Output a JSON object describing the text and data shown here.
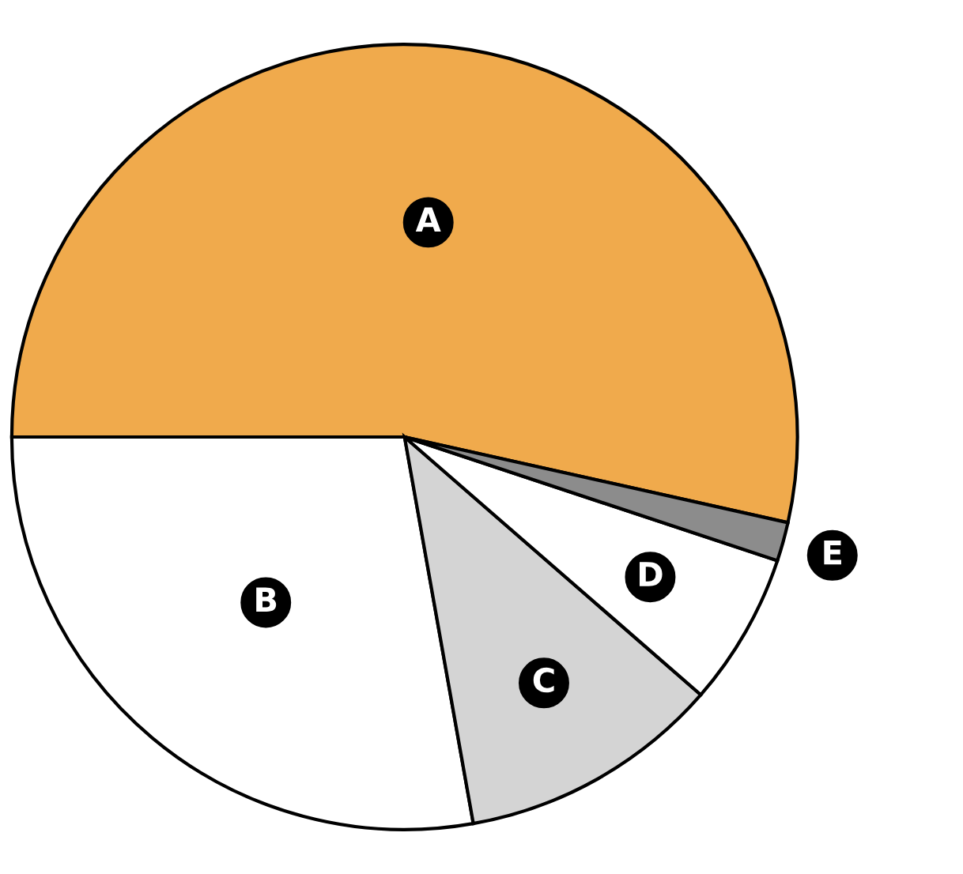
{
  "chart_data": {
    "type": "pie",
    "categories": [
      "A",
      "B",
      "C",
      "D",
      "E"
    ],
    "values": [
      53.5,
      27.8,
      10.8,
      6.3,
      1.6
    ],
    "colors": [
      "#f0aa4c",
      "#ffffff",
      "#d4d4d4",
      "#ffffff",
      "#8c8c8c"
    ]
  }
}
